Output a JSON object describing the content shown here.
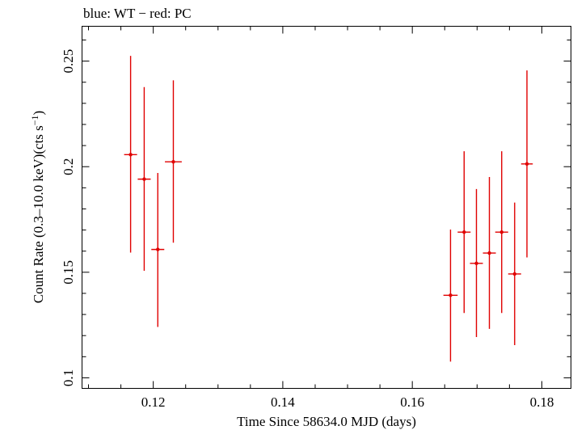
{
  "chart_data": {
    "type": "scatter",
    "title": "blue: WT − red: PC",
    "xlabel": "Time Since 58634.0 MJD (days)",
    "ylabel_main": "Count Rate (0.3–10.0 keV)(cts s",
    "ylabel_sup": "−1",
    "ylabel_end": ")",
    "xlim": [
      0.109,
      0.1845
    ],
    "ylim": [
      0.095,
      0.2665
    ],
    "grid": false,
    "x_ticks": [
      {
        "value": 0.12,
        "label": "0.12"
      },
      {
        "value": 0.14,
        "label": "0.14"
      },
      {
        "value": 0.16,
        "label": "0.16"
      },
      {
        "value": 0.18,
        "label": "0.18"
      }
    ],
    "y_ticks": [
      {
        "value": 0.1,
        "label": "0.1"
      },
      {
        "value": 0.15,
        "label": "0.15"
      },
      {
        "value": 0.2,
        "label": "0.2"
      },
      {
        "value": 0.25,
        "label": "0.25"
      }
    ],
    "series": [
      {
        "color": "#e00000",
        "points": [
          {
            "x": 0.1165,
            "xerr": 0.001,
            "y": 0.2057,
            "ylo": 0.1593,
            "yhi": 0.2525
          },
          {
            "x": 0.1186,
            "xerr": 0.001,
            "y": 0.1941,
            "ylo": 0.1507,
            "yhi": 0.2377
          },
          {
            "x": 0.1207,
            "xerr": 0.001,
            "y": 0.1608,
            "ylo": 0.1241,
            "yhi": 0.197
          },
          {
            "x": 0.1231,
            "xerr": 0.0013,
            "y": 0.2023,
            "ylo": 0.164,
            "yhi": 0.2409
          },
          {
            "x": 0.1659,
            "xerr": 0.0011,
            "y": 0.1391,
            "ylo": 0.1077,
            "yhi": 0.1702
          },
          {
            "x": 0.168,
            "xerr": 0.001,
            "y": 0.169,
            "ylo": 0.1307,
            "yhi": 0.2073
          },
          {
            "x": 0.1699,
            "xerr": 0.001,
            "y": 0.1542,
            "ylo": 0.1193,
            "yhi": 0.1894
          },
          {
            "x": 0.1719,
            "xerr": 0.001,
            "y": 0.1591,
            "ylo": 0.1232,
            "yhi": 0.1951
          },
          {
            "x": 0.1738,
            "xerr": 0.001,
            "y": 0.169,
            "ylo": 0.1307,
            "yhi": 0.2073
          },
          {
            "x": 0.1758,
            "xerr": 0.001,
            "y": 0.1492,
            "ylo": 0.1155,
            "yhi": 0.183
          },
          {
            "x": 0.1777,
            "xerr": 0.0009,
            "y": 0.2013,
            "ylo": 0.157,
            "yhi": 0.2456
          }
        ]
      }
    ]
  }
}
